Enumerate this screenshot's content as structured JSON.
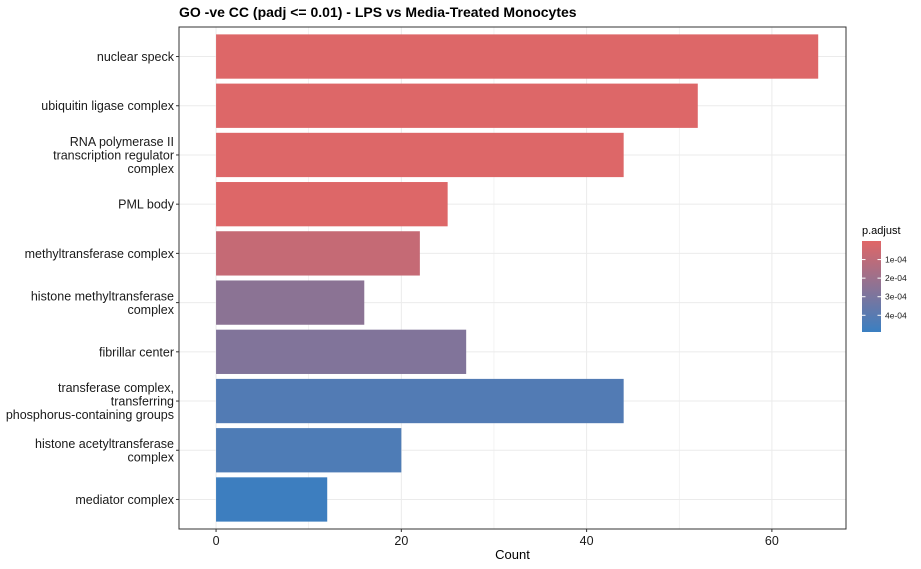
{
  "chart_data": {
    "type": "bar",
    "orientation": "horizontal",
    "title": "GO -ve CC (padj <= 0.01) - LPS vs Media-Treated Monocytes",
    "xlabel": "Count",
    "ylabel": "",
    "xlim": [
      -4,
      68
    ],
    "xticks": [
      0,
      20,
      40,
      60
    ],
    "xtick_labels": [
      "0",
      "20",
      "40",
      "60"
    ],
    "grid": true,
    "categories": [
      [
        "nuclear speck"
      ],
      [
        "ubiquitin ligase complex"
      ],
      [
        "RNA polymerase II",
        "transcription regulator",
        "complex"
      ],
      [
        "PML body"
      ],
      [
        "methyltransferase complex"
      ],
      [
        "histone methyltransferase",
        "complex"
      ],
      [
        "fibrillar center"
      ],
      [
        "transferase complex,",
        "transferring",
        "phosphorus-containing groups"
      ],
      [
        "histone acetyltransferase",
        "complex"
      ],
      [
        "mediator complex"
      ]
    ],
    "values": [
      65,
      52,
      44,
      25,
      22,
      16,
      27,
      44,
      20,
      12
    ],
    "p_adjust": [
      1e-05,
      1e-05,
      1e-05,
      1e-05,
      8e-05,
      0.00025,
      0.00028,
      0.00042,
      0.00043,
      0.00048
    ],
    "color_scale": {
      "title": "p.adjust",
      "min": 0,
      "max": 0.00049,
      "low_color": "#e06666",
      "high_color": "#3a7fc1",
      "ticks": [
        0.0001,
        0.0002,
        0.0003,
        0.0004
      ],
      "tick_labels": [
        "1e-04",
        "2e-04",
        "3e-04",
        "4e-04"
      ],
      "position": "right"
    }
  }
}
